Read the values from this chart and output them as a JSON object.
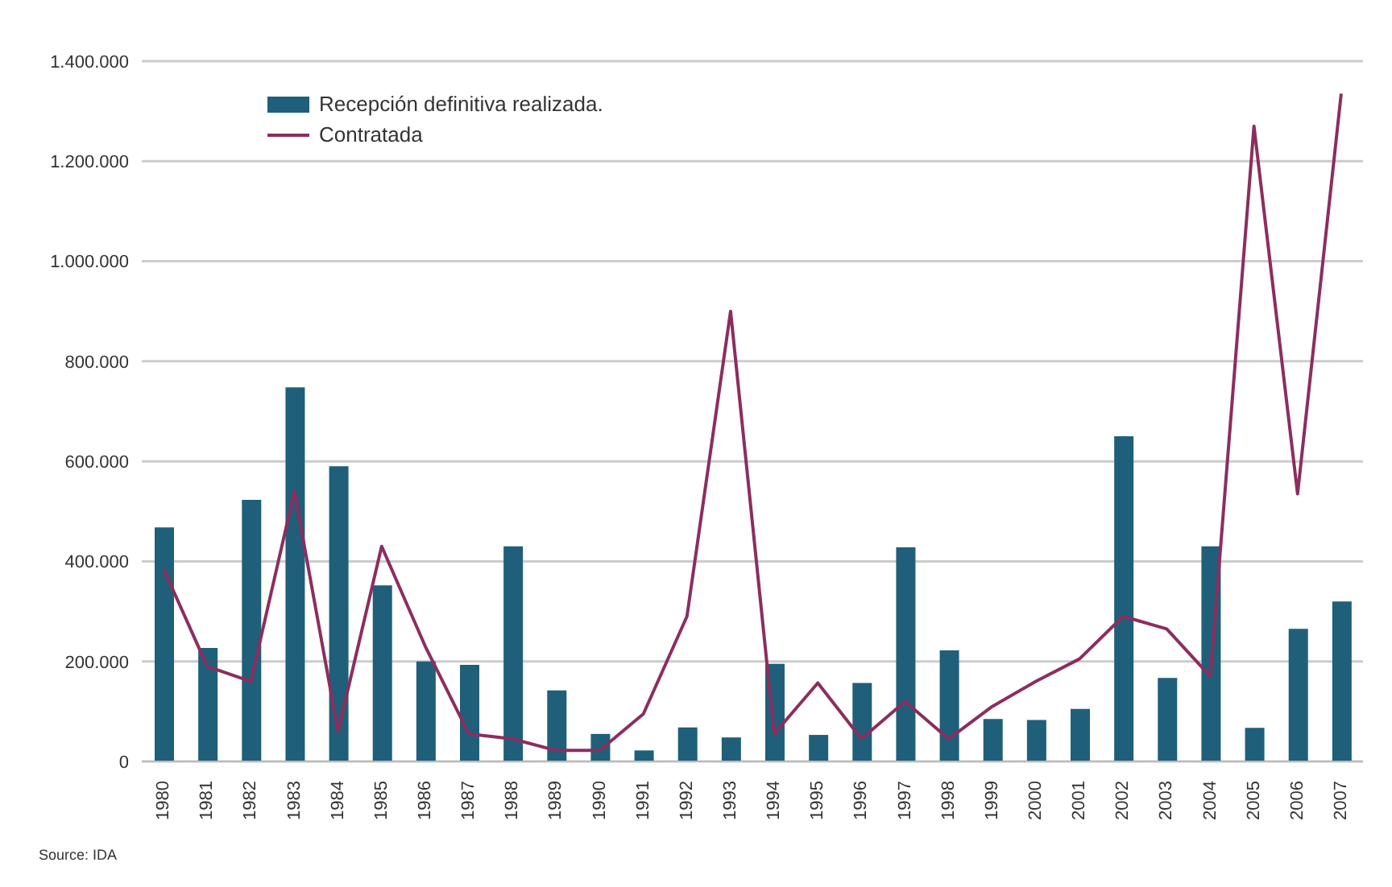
{
  "chart_data": {
    "type": "bar",
    "categories": [
      "1980",
      "1981",
      "1982",
      "1983",
      "1984",
      "1985",
      "1986",
      "1987",
      "1988",
      "1989",
      "1990",
      "1991",
      "1992",
      "1993",
      "1994",
      "1995",
      "1996",
      "1997",
      "1998",
      "1999",
      "2000",
      "2001",
      "2002",
      "2003",
      "2004",
      "2005",
      "2006",
      "2007"
    ],
    "series": [
      {
        "name": "Recepción definitiva realizada.",
        "color": "#1f5f7a",
        "values": [
          468000,
          227000,
          523000,
          748000,
          590000,
          352000,
          200000,
          193000,
          430000,
          142000,
          55000,
          22000,
          68000,
          48000,
          195000,
          53000,
          157000,
          428000,
          222000,
          85000,
          83000,
          105000,
          650000,
          167000,
          430000,
          67000,
          265000,
          320000
        ]
      },
      {
        "name": "Contratada",
        "type": "line",
        "color": "#8b2e5f",
        "values": [
          385000,
          190000,
          160000,
          540000,
          60000,
          430000,
          230000,
          55000,
          45000,
          22000,
          22000,
          95000,
          290000,
          900000,
          55000,
          157000,
          45000,
          120000,
          45000,
          110000,
          160000,
          205000,
          290000,
          265000,
          170000,
          1270000,
          535000,
          1335000
        ]
      }
    ],
    "ylim": [
      0,
      1400000
    ],
    "yticks": [
      0,
      {
        "value": 200000,
        "label": "200.000"
      },
      {
        "value": 400000,
        "label": "400.000"
      },
      {
        "value": 600000,
        "label": "600.000"
      },
      {
        "value": 800000,
        "label": "800.000"
      },
      {
        "value": 1000000,
        "label": "1.000.000"
      },
      {
        "value": 1200000,
        "label": "1.200.000"
      },
      {
        "value": 1400000,
        "label": "1.400.000"
      }
    ],
    "grid": "y",
    "legend": "top left",
    "marker": "none",
    "line_style": "solid",
    "annotations": [
      "Source: IDA"
    ]
  }
}
